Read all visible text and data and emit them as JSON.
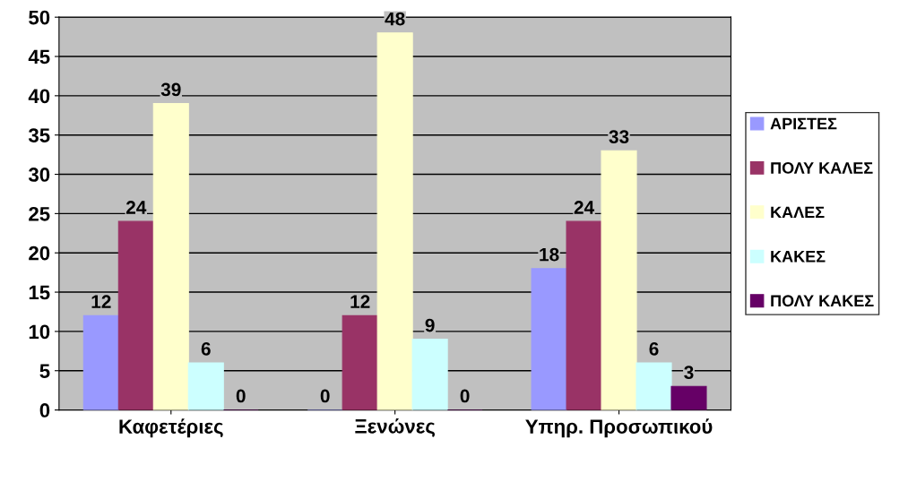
{
  "chart_data": {
    "type": "bar",
    "categories": [
      "Καφετέριες",
      "Ξενώνες",
      "Υπηρ. Προσωπικού"
    ],
    "series": [
      {
        "name": "ΑΡΙΣΤΕΣ",
        "color": "#9999ff",
        "values": [
          12,
          0,
          18
        ]
      },
      {
        "name": "ΠΟΛΥ ΚΑΛΕΣ",
        "color": "#993366",
        "values": [
          24,
          12,
          24
        ]
      },
      {
        "name": "ΚΑΛΕΣ",
        "color": "#ffffcc",
        "values": [
          39,
          48,
          33
        ]
      },
      {
        "name": "ΚΑΚΕΣ",
        "color": "#ccffff",
        "values": [
          6,
          9,
          6
        ]
      },
      {
        "name": "ΠΟΛΥ ΚΑΚΕΣ",
        "color": "#660066",
        "values": [
          0,
          0,
          3
        ]
      }
    ],
    "ylim": [
      0,
      50
    ],
    "yticks": [
      0,
      5,
      10,
      15,
      20,
      25,
      30,
      35,
      40,
      45,
      50
    ],
    "grid": "y",
    "legend": "right",
    "data_labels": true
  }
}
